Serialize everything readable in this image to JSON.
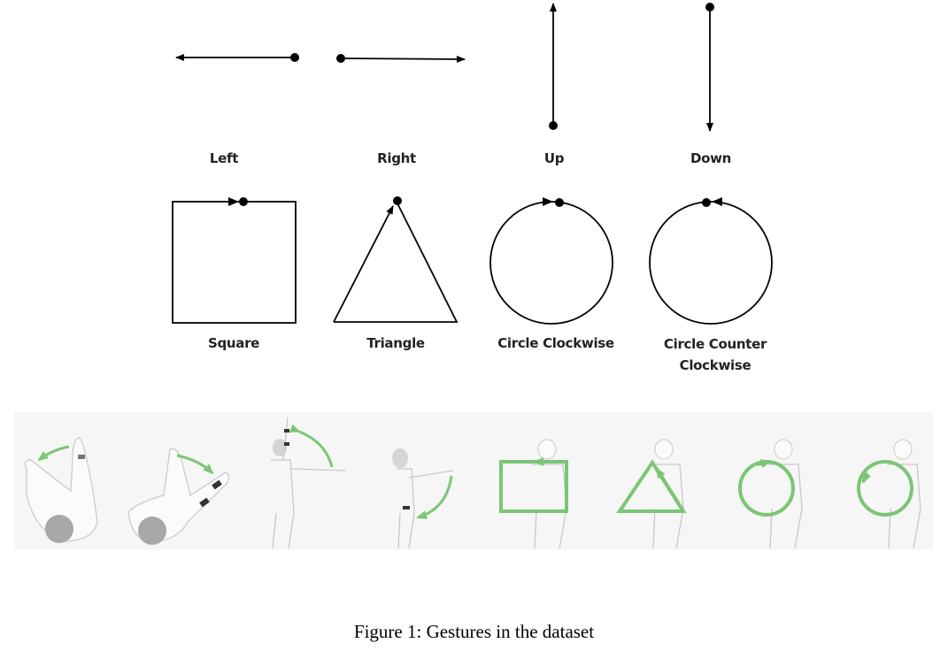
{
  "figure": {
    "gestures": [
      {
        "id": "left",
        "label": "Left"
      },
      {
        "id": "right",
        "label": "Right"
      },
      {
        "id": "up",
        "label": "Up"
      },
      {
        "id": "down",
        "label": "Down"
      },
      {
        "id": "square",
        "label": "Square"
      },
      {
        "id": "triangle",
        "label": "Triangle"
      },
      {
        "id": "circle-clockwise",
        "label": "Circle Clockwise"
      },
      {
        "id": "circle-counter-clockwise",
        "label_line1": "Circle Counter",
        "label_line2": "Clockwise"
      }
    ],
    "caption": "Figure 1: Gestures in the dataset",
    "illustration_colors": {
      "accent": "#7cc576",
      "figure_outline": "#c8c8c8",
      "head": "#a8a8a8"
    }
  }
}
